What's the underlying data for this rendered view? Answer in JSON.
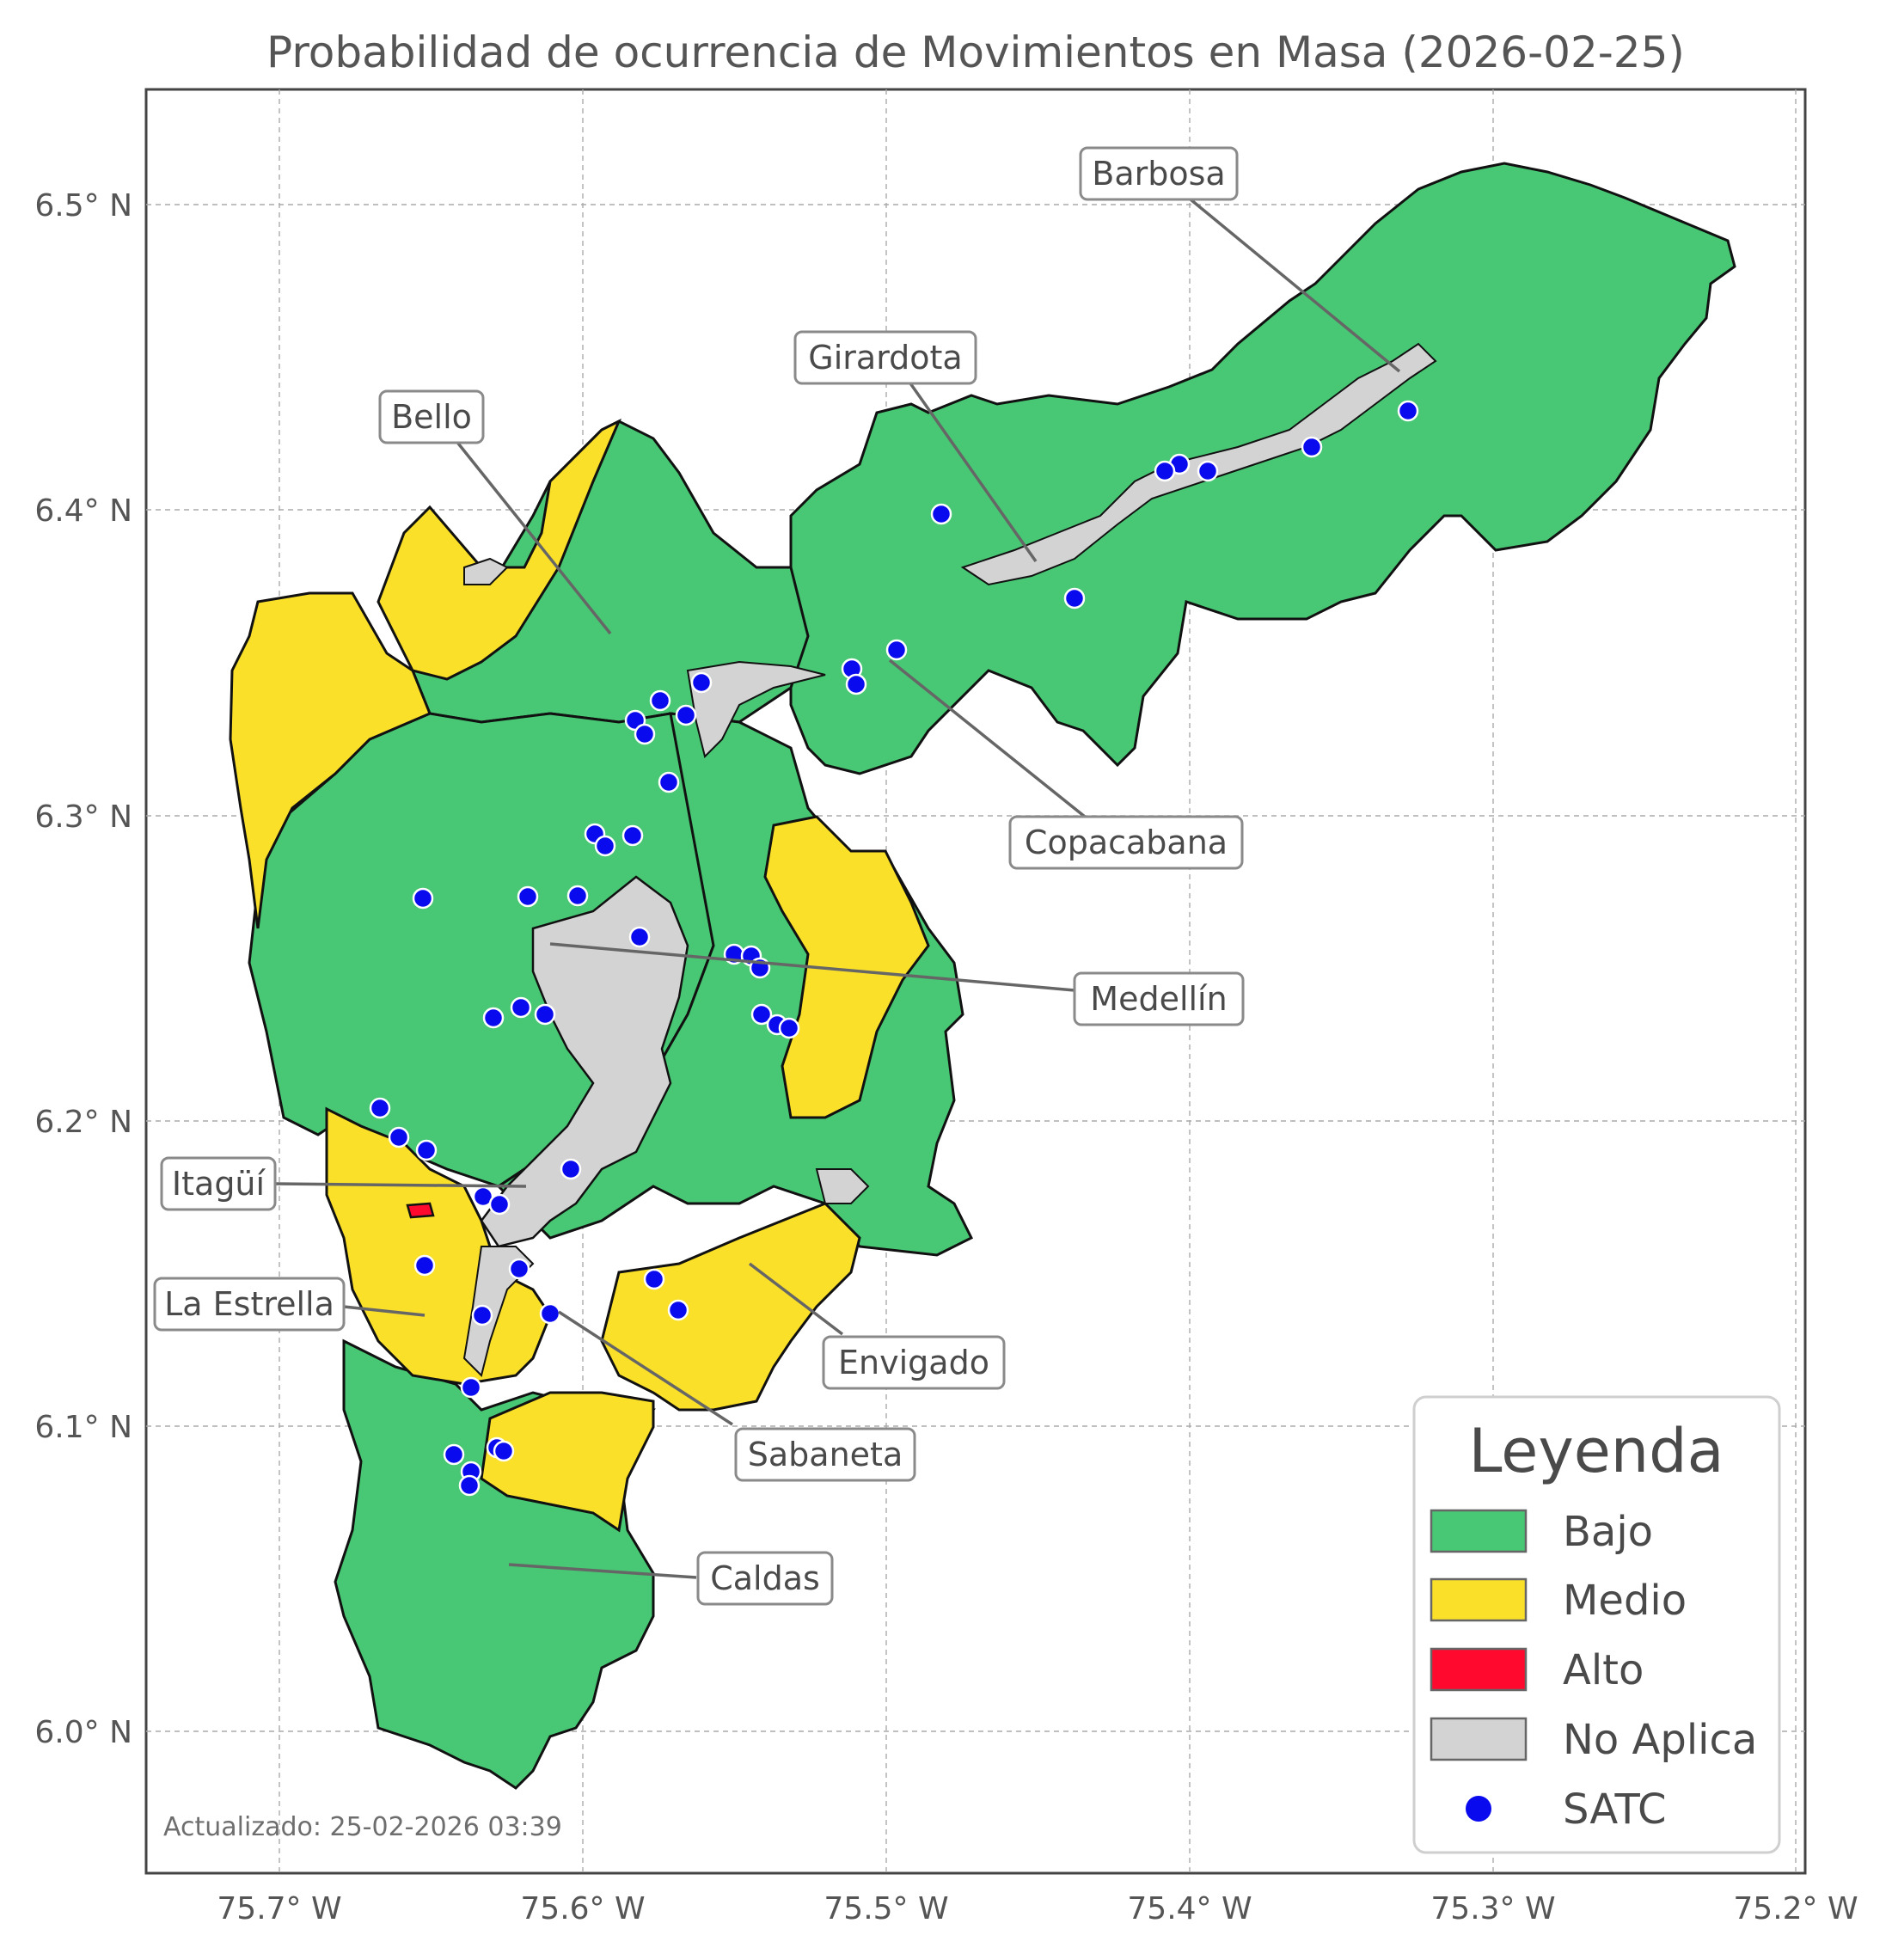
{
  "title": "Probabilidad de ocurrencia de Movimientos en Masa (2026-02-25)",
  "axes": {
    "x_ticks": [
      "75.7° W",
      "75.6° W",
      "75.5° W",
      "75.4° W",
      "75.3° W",
      "75.2° W"
    ],
    "y_ticks": [
      "6.5° N",
      "6.4° N",
      "6.3° N",
      "6.2° N",
      "6.1° N",
      "6.0° N"
    ],
    "grid": true
  },
  "colors": {
    "bajo": "#48c774",
    "medio": "#fbe02a",
    "alto": "#ff0a2e",
    "no_aplica": "#d3d3d3",
    "satc": "#0a0aef"
  },
  "municipalities": [
    {
      "name": "Barbosa"
    },
    {
      "name": "Girardota"
    },
    {
      "name": "Bello"
    },
    {
      "name": "Copacabana"
    },
    {
      "name": "Medellín"
    },
    {
      "name": "Itagüí"
    },
    {
      "name": "La Estrella"
    },
    {
      "name": "Envigado"
    },
    {
      "name": "Sabaneta"
    },
    {
      "name": "Caldas"
    }
  ],
  "legend": {
    "title": "Leyenda",
    "items": [
      {
        "label": "Bajo",
        "swatch": "#48c774",
        "kind": "patch"
      },
      {
        "label": "Medio",
        "swatch": "#fbe02a",
        "kind": "patch"
      },
      {
        "label": "Alto",
        "swatch": "#ff0a2e",
        "kind": "patch"
      },
      {
        "label": "No Aplica",
        "swatch": "#d3d3d3",
        "kind": "patch"
      },
      {
        "label": "SATC",
        "swatch": "#0a0aef",
        "kind": "marker"
      }
    ]
  },
  "updated": "Actualizado: 25-02-2026 03:39"
}
